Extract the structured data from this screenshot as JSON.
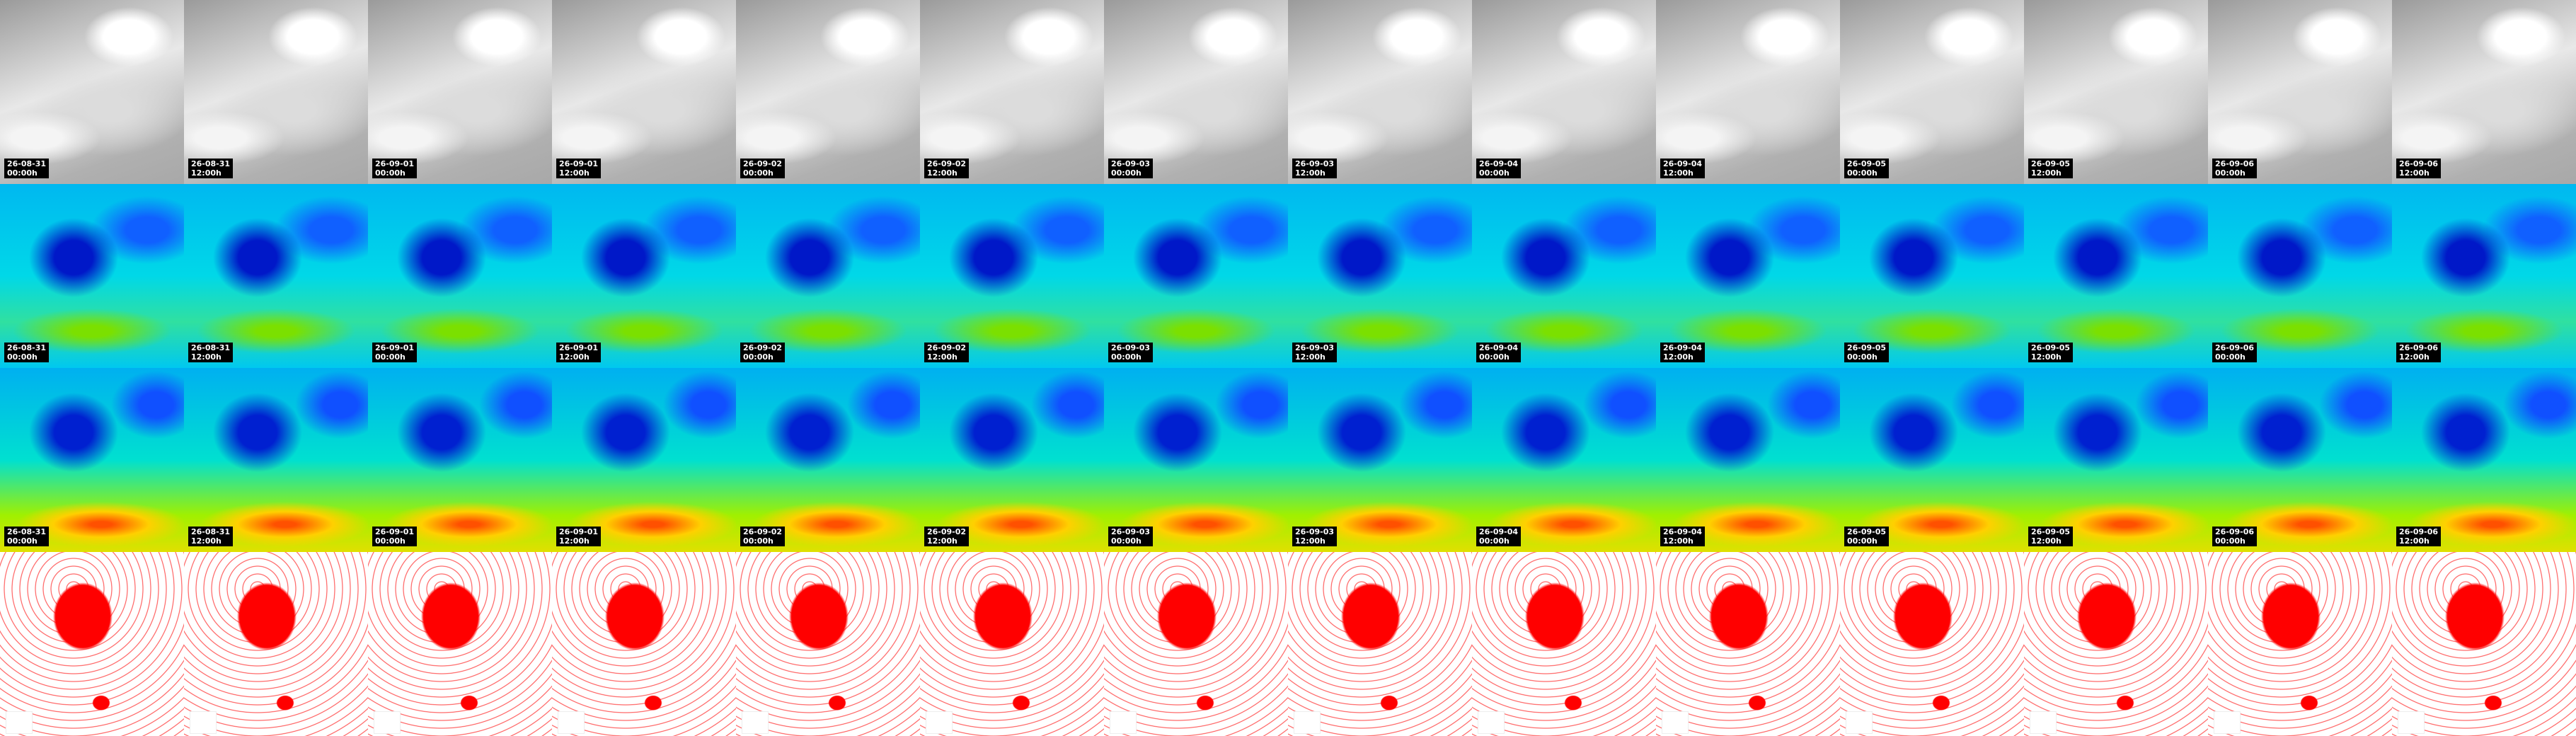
{
  "columns": [
    {
      "date": "26-08-31",
      "time": "00:00h"
    },
    {
      "date": "26-08-31",
      "time": "12:00h"
    },
    {
      "date": "26-09-01",
      "time": "00:00h"
    },
    {
      "date": "26-09-01",
      "time": "12:00h"
    },
    {
      "date": "26-09-02",
      "time": "00:00h"
    },
    {
      "date": "26-09-02",
      "time": "12:00h"
    },
    {
      "date": "26-09-03",
      "time": "00:00h"
    },
    {
      "date": "26-09-03",
      "time": "12:00h"
    },
    {
      "date": "26-09-04",
      "time": "00:00h"
    },
    {
      "date": "26-09-04",
      "time": "12:00h"
    },
    {
      "date": "26-09-05",
      "time": "00:00h"
    },
    {
      "date": "26-09-05",
      "time": "12:00h"
    },
    {
      "date": "26-09-06",
      "time": "00:00h"
    },
    {
      "date": "26-09-06",
      "time": "12:00h"
    }
  ]
}
